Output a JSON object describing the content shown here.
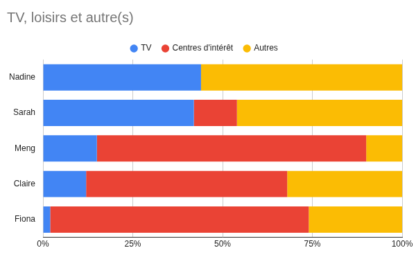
{
  "chart_data": {
    "type": "bar",
    "title": "TV, loisirs et autre(s)",
    "orientation": "horizontal",
    "stacked": true,
    "grid": true,
    "legend": "top",
    "categories": [
      "Nadine",
      "Sarah",
      "Meng",
      "Claire",
      "Fiona"
    ],
    "series": [
      {
        "name": "TV",
        "color": "#4285f4",
        "values": [
          44,
          42,
          15,
          12,
          2
        ]
      },
      {
        "name": "Centres d'intérêt",
        "color": "#ea4335",
        "values": [
          0,
          12,
          75,
          56,
          72
        ]
      },
      {
        "name": "Autres",
        "color": "#fbbc04",
        "values": [
          56,
          46,
          10,
          32,
          26
        ]
      }
    ],
    "xlim": [
      0,
      100
    ],
    "xticks": [
      {
        "value": 0,
        "label": "0%"
      },
      {
        "value": 25,
        "label": "25%"
      },
      {
        "value": 50,
        "label": "50%"
      },
      {
        "value": 75,
        "label": "75%"
      },
      {
        "value": 100,
        "label": "100%"
      }
    ]
  }
}
